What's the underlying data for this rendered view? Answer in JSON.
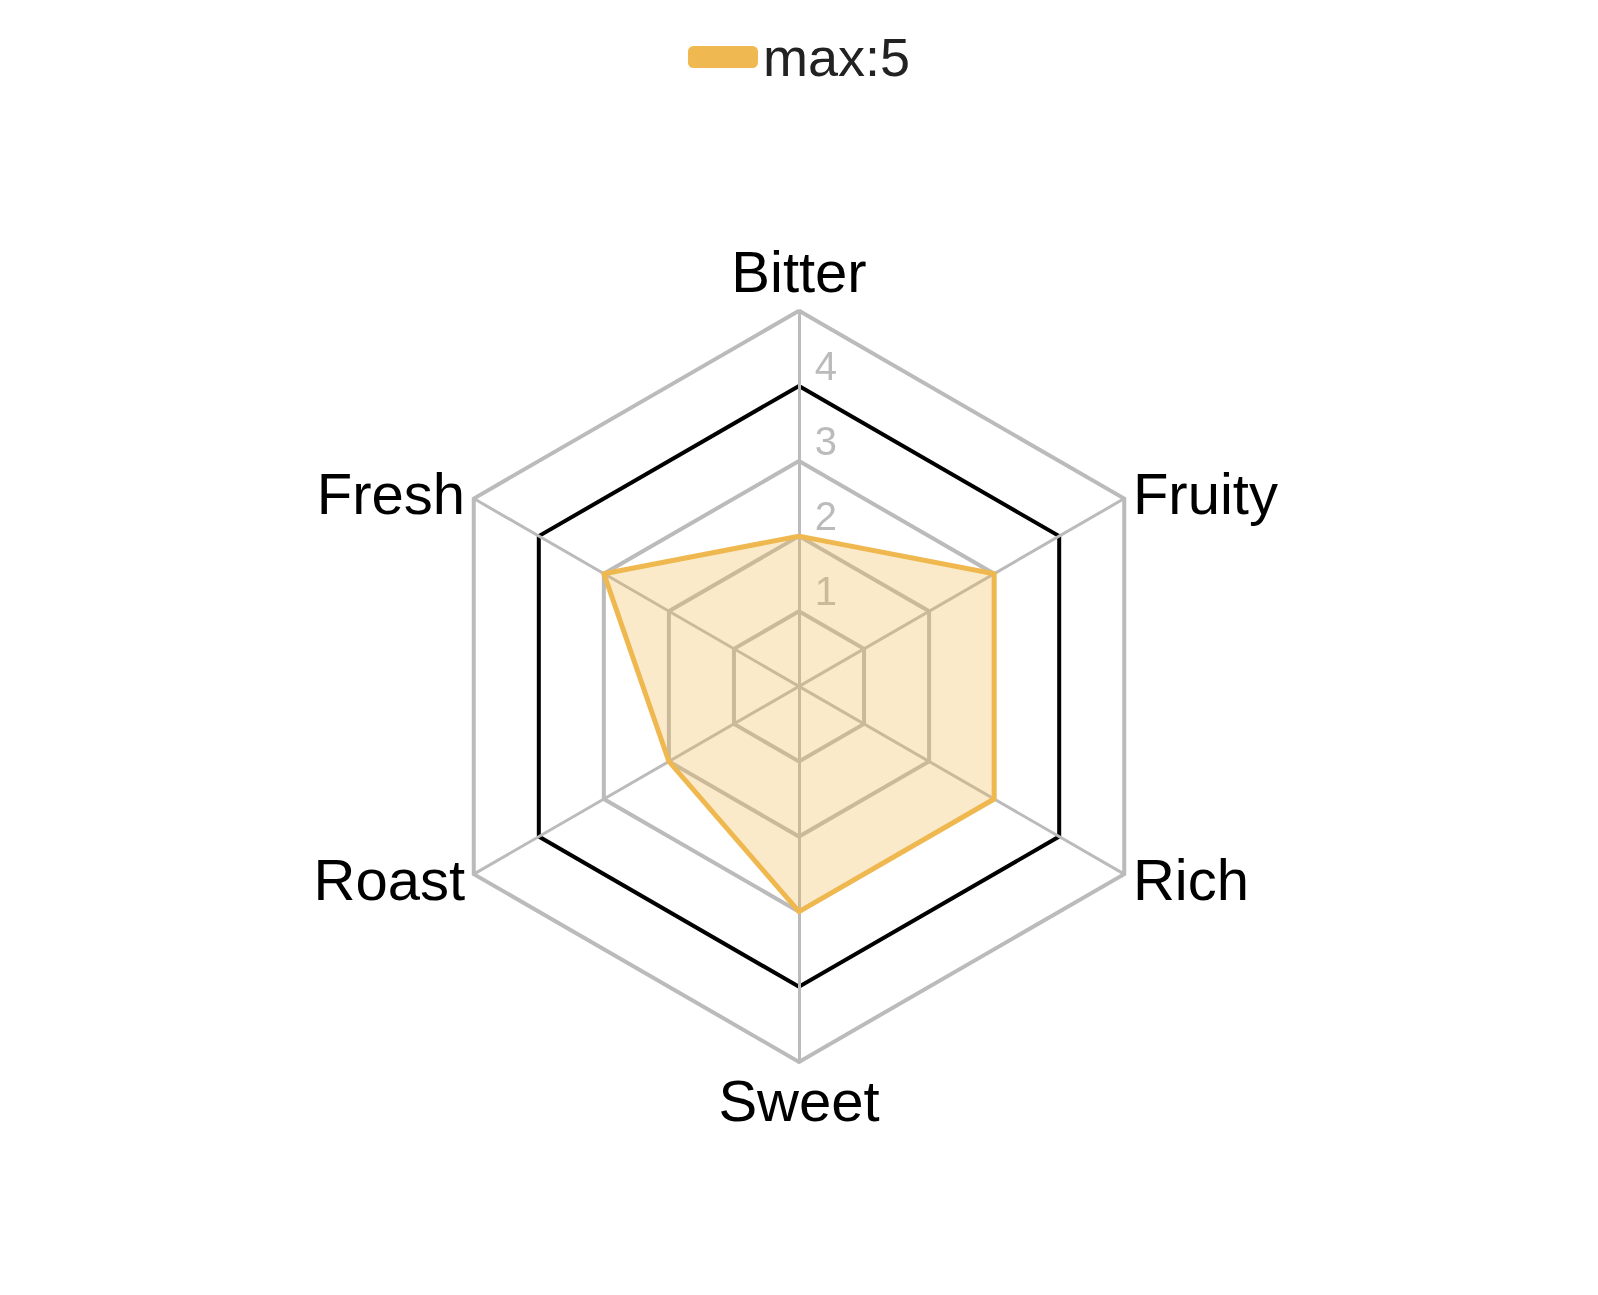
{
  "chart_data": {
    "type": "radar",
    "categories": [
      "Bitter",
      "Fruity",
      "Rich",
      "Sweet",
      "Roast",
      "Fresh"
    ],
    "series": [
      {
        "name": "max:5",
        "color": "#f0b850",
        "values": [
          2,
          3,
          3,
          3,
          2,
          3
        ]
      }
    ],
    "ylim": [
      0,
      5
    ],
    "yticks": [
      1,
      2,
      3,
      4
    ],
    "legend": "top",
    "marker": "none",
    "line_style": "solid",
    "grid": true
  }
}
